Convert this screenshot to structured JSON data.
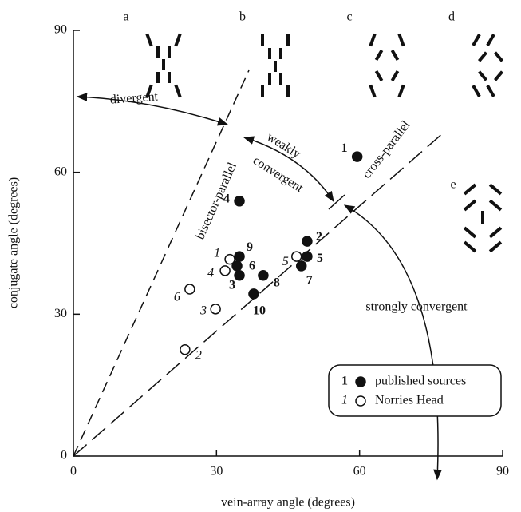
{
  "chart_data": {
    "type": "scatter",
    "xlabel": "vein-array angle (degrees)",
    "ylabel": "conjugate angle (degrees)",
    "xlim": [
      0,
      90
    ],
    "ylim": [
      0,
      90
    ],
    "xticks": [
      0,
      30,
      60,
      90
    ],
    "yticks": [
      0,
      30,
      60,
      90
    ],
    "series": [
      {
        "name": "published sources",
        "legend_key": "1",
        "marker": "filled",
        "color": "#111111",
        "x": [
          59.5,
          49,
          34.8,
          34.8,
          49,
          34.3,
          47.8,
          39.8,
          34.8,
          37.8
        ],
        "y": [
          63.3,
          45.4,
          38.2,
          53.9,
          42.2,
          40.2,
          40.2,
          38.2,
          42.2,
          34.3
        ],
        "labels": [
          "1",
          "2",
          "3",
          "4",
          "5",
          "6",
          "7",
          "8",
          "9",
          "10"
        ]
      },
      {
        "name": "Norries Head",
        "legend_key": "1",
        "marker": "open",
        "color": "#111111",
        "x": [
          32.8,
          23.4,
          29.8,
          31.8,
          46.8,
          24.4
        ],
        "y": [
          41.6,
          22.5,
          31.1,
          39.2,
          42.2,
          35.3
        ],
        "labels": [
          "1",
          "2",
          "3",
          "4",
          "5",
          "6"
        ]
      }
    ],
    "annotations": [
      "divergent",
      "weakly",
      "convergent",
      "strongly convergent",
      "bisector-parallel",
      "cross-parallel"
    ],
    "panels": [
      "a",
      "b",
      "c",
      "d",
      "e"
    ]
  }
}
